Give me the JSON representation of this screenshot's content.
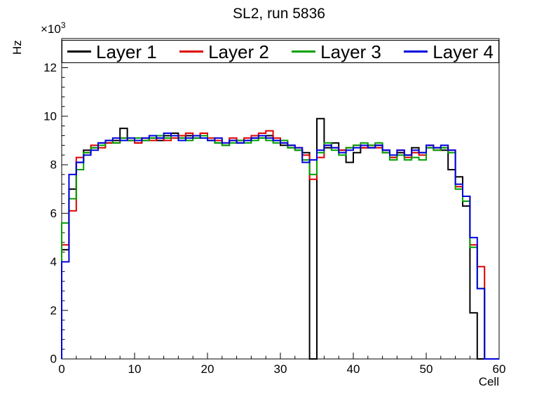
{
  "title": "SL2, run 5836",
  "axes": {
    "x": {
      "label": "Cell",
      "min": 0,
      "max": 60,
      "major_ticks": [
        0,
        10,
        20,
        30,
        40,
        50,
        60
      ],
      "minor_step": 2
    },
    "y": {
      "label": "Hz",
      "min": 0,
      "max": 13200,
      "tick_scale": 1000,
      "major_ticks": [
        0,
        2,
        4,
        6,
        8,
        10,
        12
      ],
      "minor_step": 400,
      "exponent_base": "×10",
      "exponent": "3"
    }
  },
  "legend": {
    "entries": [
      "Layer 1",
      "Layer 2",
      "Layer 3",
      "Layer 4"
    ]
  },
  "chart_data": {
    "type": "line",
    "style": "histogram-step",
    "title": "SL2, run 5836",
    "xlabel": "Cell",
    "ylabel": "Hz",
    "xlim": [
      0,
      60
    ],
    "ylim": [
      0,
      13200
    ],
    "bin_width": 1,
    "grid": false,
    "legend_position": "top-inside-full-width",
    "series": [
      {
        "name": "Layer 1",
        "color": "#000000",
        "values": [
          4500,
          7000,
          8100,
          8600,
          8700,
          8900,
          8900,
          9000,
          9500,
          9000,
          8900,
          9000,
          9100,
          9000,
          9200,
          9300,
          9100,
          9200,
          9100,
          9200,
          9000,
          8900,
          8800,
          9000,
          8900,
          9000,
          9100,
          9100,
          9200,
          9000,
          8800,
          8700,
          8600,
          8500,
          0,
          9900,
          8700,
          8900,
          8600,
          8100,
          8500,
          8700,
          8700,
          8800,
          8600,
          8300,
          8500,
          8400,
          8700,
          8500,
          8700,
          8700,
          8600,
          7800,
          7500,
          6300,
          1900,
          0,
          0,
          0
        ]
      },
      {
        "name": "Layer 2",
        "color": "#dd0000",
        "values": [
          4700,
          6100,
          8300,
          8500,
          8800,
          8700,
          8900,
          8900,
          9100,
          9000,
          8900,
          9100,
          9000,
          9100,
          9000,
          9100,
          9200,
          9300,
          9200,
          9300,
          9100,
          9000,
          8900,
          9100,
          9000,
          9100,
          9200,
          9300,
          9400,
          9100,
          8900,
          8800,
          8700,
          8400,
          7400,
          8300,
          8800,
          8700,
          8600,
          8700,
          8800,
          8700,
          8800,
          8700,
          8500,
          8300,
          8600,
          8300,
          8500,
          8400,
          8800,
          8600,
          8700,
          8600,
          7100,
          6700,
          4700,
          3800,
          0,
          0
        ]
      },
      {
        "name": "Layer 3",
        "color": "#00a000",
        "values": [
          5600,
          6600,
          7800,
          8500,
          8700,
          8800,
          9000,
          8900,
          9100,
          9000,
          9100,
          9000,
          9100,
          9200,
          9100,
          9200,
          9100,
          9000,
          9100,
          9200,
          9000,
          8900,
          8800,
          8900,
          9000,
          8900,
          9000,
          9100,
          9000,
          8900,
          9000,
          8700,
          8600,
          8200,
          7600,
          8500,
          8900,
          8600,
          8400,
          8700,
          8800,
          8900,
          8800,
          8900,
          8500,
          8200,
          8400,
          8200,
          8300,
          8200,
          8700,
          8600,
          8700,
          8500,
          7000,
          6500,
          4600,
          2900,
          0,
          0
        ]
      },
      {
        "name": "Layer 4",
        "color": "#0000dd",
        "values": [
          4000,
          7600,
          8100,
          8400,
          8600,
          8900,
          9000,
          9100,
          9000,
          9100,
          9000,
          9100,
          9200,
          9100,
          9300,
          9200,
          9000,
          9100,
          9200,
          9100,
          9000,
          9100,
          8900,
          9000,
          8900,
          9000,
          9100,
          9200,
          9100,
          9000,
          8900,
          8800,
          8700,
          8100,
          8200,
          8600,
          8800,
          8700,
          8500,
          8600,
          8700,
          8800,
          8700,
          8800,
          8600,
          8400,
          8600,
          8400,
          8600,
          8500,
          8800,
          8700,
          8800,
          8600,
          7200,
          6700,
          5000,
          2900,
          0,
          0
        ]
      }
    ]
  }
}
